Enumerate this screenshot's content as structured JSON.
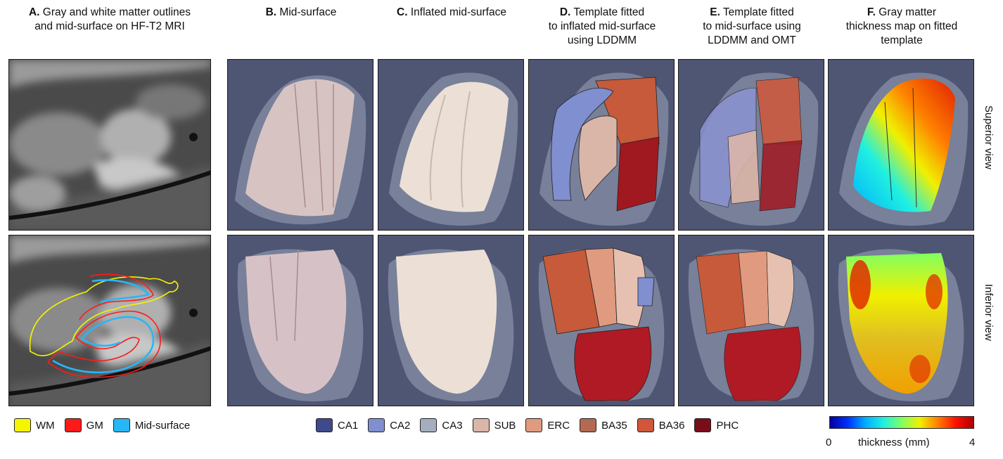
{
  "columns": [
    {
      "letter": "A.",
      "title_line1": " Gray and white matter outlines",
      "title_line2": "and mid-surface on HF-T2 MRI",
      "title_line3": ""
    },
    {
      "letter": "B.",
      "title_line1": " Mid-surface",
      "title_line2": "",
      "title_line3": ""
    },
    {
      "letter": "C.",
      "title_line1": " Inflated mid-surface",
      "title_line2": "",
      "title_line3": ""
    },
    {
      "letter": "D.",
      "title_line1": " Template fitted",
      "title_line2": "to inflated mid-surface",
      "title_line3": "using LDDMM"
    },
    {
      "letter": "E.",
      "title_line1": " Template fitted",
      "title_line2": "to mid-surface using",
      "title_line3": "LDDMM and OMT"
    },
    {
      "letter": "F.",
      "title_line1": " Gray matter",
      "title_line2": "thickness map on fitted",
      "title_line3": "template"
    }
  ],
  "row_labels": {
    "superior": "Superior view",
    "inferior": "Inferior view"
  },
  "outline_legend": [
    {
      "label": "WM",
      "color": "#f5f500"
    },
    {
      "label": "GM",
      "color": "#ff1a1a"
    },
    {
      "label": "Mid-surface",
      "color": "#29b6f6"
    }
  ],
  "subfield_legend": [
    {
      "label": "CA1",
      "color": "#3f4a8c"
    },
    {
      "label": "CA2",
      "color": "#7f8fd0"
    },
    {
      "label": "CA3",
      "color": "#a6adbf"
    },
    {
      "label": "SUB",
      "color": "#d9b6a8"
    },
    {
      "label": "ERC",
      "color": "#e09a80"
    },
    {
      "label": "BA35",
      "color": "#b46a52"
    },
    {
      "label": "BA36",
      "color": "#d0573a"
    },
    {
      "label": "PHC",
      "color": "#7a0d1a"
    }
  ],
  "colorbar": {
    "min": "0",
    "max": "4",
    "label": "thickness (mm)"
  }
}
